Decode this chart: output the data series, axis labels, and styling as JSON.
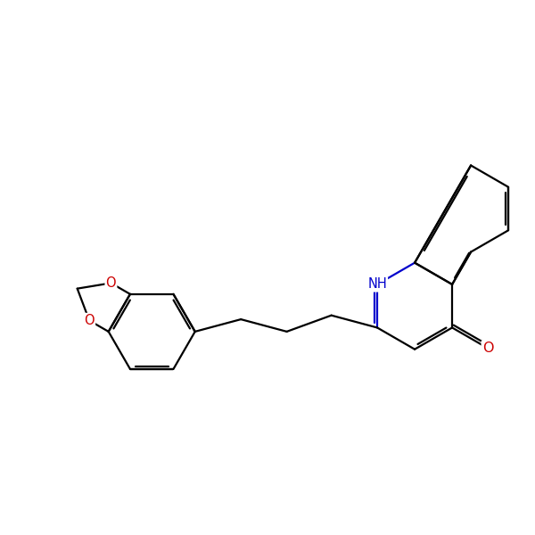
{
  "bg_color": "#ffffff",
  "bond_color": "#000000",
  "o_color": "#cc0000",
  "n_color": "#0000cc",
  "lw": 1.6,
  "doff": 0.055,
  "fs": 10.5,
  "xlim": [
    0,
    10
  ],
  "ylim": [
    2.5,
    8.5
  ]
}
